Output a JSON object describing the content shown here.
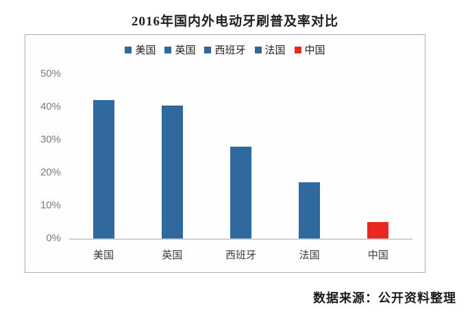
{
  "title": "2016年国内外电动牙刷普及率对比",
  "chart_data": {
    "type": "bar",
    "title": "2016年国内外电动牙刷普及率对比",
    "categories": [
      "美国",
      "英国",
      "西班牙",
      "法国",
      "中国"
    ],
    "values": [
      42,
      40.5,
      28,
      17,
      5
    ],
    "value_unit": "%",
    "bar_colors": [
      "#2f699e",
      "#2f699e",
      "#2f699e",
      "#2f699e",
      "#e6281e"
    ],
    "legend": [
      {
        "label": "美国",
        "color": "#2f699e"
      },
      {
        "label": "英国",
        "color": "#2f699e"
      },
      {
        "label": "西班牙",
        "color": "#2f699e"
      },
      {
        "label": "法国",
        "color": "#2f699e"
      },
      {
        "label": "中国",
        "color": "#e6281e"
      }
    ],
    "legend_position": "top-center",
    "xlabel": "",
    "ylabel": "",
    "ylim": [
      0,
      50
    ],
    "y_ticks": [
      {
        "label": "0%",
        "value": 0
      },
      {
        "label": "10%",
        "value": 10
      },
      {
        "label": "20%",
        "value": 20
      },
      {
        "label": "30%",
        "value": 30
      },
      {
        "label": "40%",
        "value": 40
      },
      {
        "label": "50%",
        "value": 50
      }
    ],
    "grid": false
  },
  "footer": {
    "source_text": "数据来源：公开资料整理"
  },
  "colors": {
    "bar_blue": "#2f699e",
    "bar_red": "#e6281e",
    "axis_line": "#cfcfd4",
    "frame_border": "#aaaab2",
    "tick_text": "#7a7a7a"
  }
}
